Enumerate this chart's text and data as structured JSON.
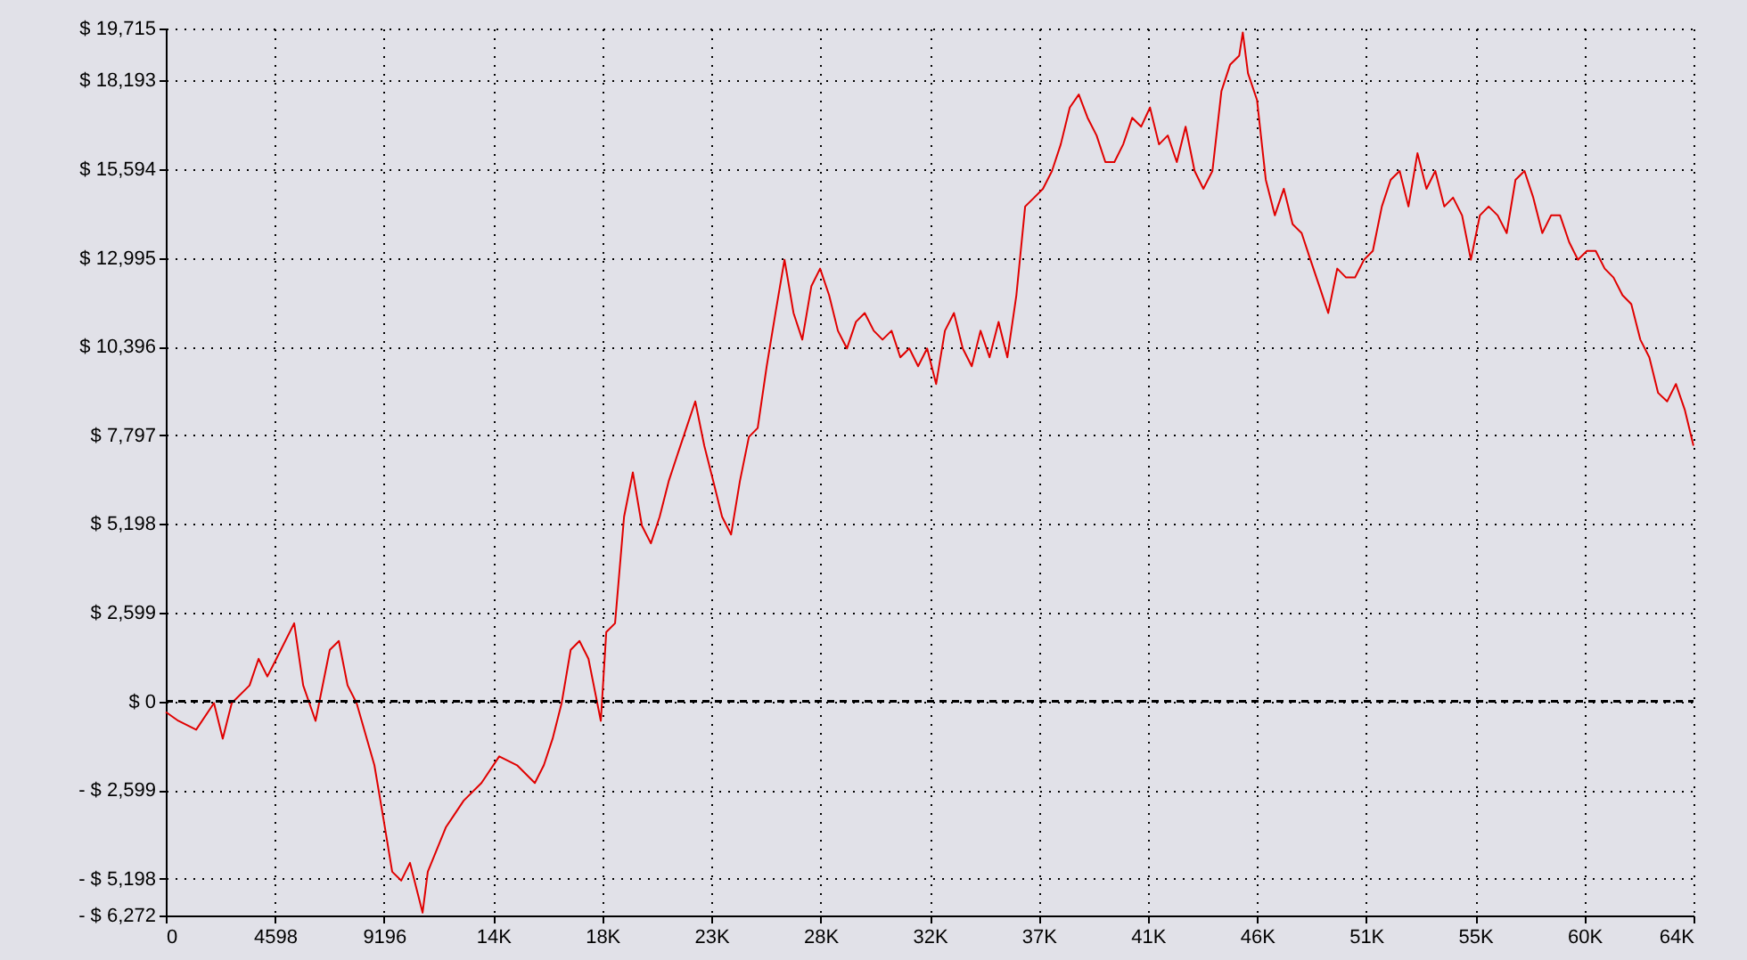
{
  "chart_data": {
    "type": "line",
    "xlim": [
      0,
      64372
    ],
    "xticks": [
      0,
      4598,
      9196,
      {
        "value": 13794,
        "label": "14K"
      },
      {
        "value": 18392,
        "label": "18K"
      },
      {
        "value": 22990,
        "label": "23K"
      },
      {
        "value": 27588,
        "label": "28K"
      },
      {
        "value": 32186,
        "label": "32K"
      },
      {
        "value": 36784,
        "label": "37K"
      },
      {
        "value": 41382,
        "label": "41K"
      },
      {
        "value": 45980,
        "label": "46K"
      },
      {
        "value": 50578,
        "label": "51K"
      },
      {
        "value": 55176,
        "label": "55K"
      },
      {
        "value": 59774,
        "label": "60K"
      },
      {
        "value": 64372,
        "label": "64K"
      }
    ],
    "ylim": [
      -6272,
      19715
    ],
    "yticks": [
      {
        "value": -6272,
        "label": "- $ 6,272"
      },
      {
        "value": -5198,
        "label": "- $ 5,198"
      },
      {
        "value": -2599,
        "label": "- $ 2,599"
      },
      {
        "value": 0,
        "label": "$ 0"
      },
      {
        "value": 2599,
        "label": "$ 2,599"
      },
      {
        "value": 5198,
        "label": "$ 5,198"
      },
      {
        "value": 7797,
        "label": "$ 7,797"
      },
      {
        "value": 10396,
        "label": "$ 10,396"
      },
      {
        "value": 12995,
        "label": "$ 12,995"
      },
      {
        "value": 15594,
        "label": "$ 15,594"
      },
      {
        "value": 18193,
        "label": "$ 18,193"
      },
      {
        "value": 19715,
        "label": "$ 19,715"
      }
    ],
    "grid": true,
    "line_style": "solid",
    "ref_lines": [
      {
        "axis": "y",
        "value": 0,
        "color": "#000000",
        "line_style": "dashed"
      }
    ],
    "series": [
      {
        "color": "#e00000",
        "x": [
          0,
          530,
          1280,
          2030,
          2400,
          2780,
          3530,
          3910,
          4280,
          4660,
          5410,
          5790,
          6310,
          6910,
          7290,
          7660,
          8040,
          8790,
          9170,
          9540,
          9920,
          10290,
          10820,
          11040,
          11800,
          12550,
          13300,
          14050,
          14800,
          15550,
          15930,
          16300,
          16680,
          17060,
          17430,
          17810,
          18330,
          18560,
          18930,
          19310,
          19680,
          20060,
          20440,
          20810,
          21190,
          21560,
          22310,
          22690,
          23070,
          23440,
          23820,
          24190,
          24570,
          24940,
          25320,
          25690,
          26070,
          26450,
          26820,
          27200,
          27570,
          27950,
          28320,
          28700,
          29080,
          29450,
          29830,
          30200,
          30580,
          30950,
          31330,
          31700,
          32080,
          32460,
          32830,
          33210,
          33580,
          33960,
          34330,
          34710,
          35090,
          35460,
          35840,
          36210,
          36590,
          36960,
          37340,
          37710,
          38090,
          38470,
          38840,
          39220,
          39590,
          39970,
          40340,
          40720,
          41100,
          41470,
          41850,
          42220,
          42600,
          42970,
          43350,
          43720,
          44100,
          44480,
          44850,
          45230,
          45380,
          45600,
          45980,
          46350,
          46730,
          47110,
          47480,
          47860,
          48230,
          48610,
          48980,
          49360,
          49730,
          50110,
          50490,
          50860,
          51240,
          51610,
          51990,
          52360,
          52740,
          53120,
          53490,
          53870,
          54240,
          54620,
          54990,
          55370,
          55740,
          56120,
          56500,
          56870,
          57250,
          57620,
          58000,
          58370,
          58750,
          59130,
          59500,
          59880,
          60250,
          60630,
          61000,
          61380,
          61750,
          62130,
          62510,
          62880,
          63260,
          63630,
          64010,
          64370
        ],
        "values": [
          -310,
          -570,
          -830,
          -50,
          -1090,
          -50,
          470,
          1250,
          730,
          1250,
          2290,
          470,
          -570,
          1510,
          1770,
          470,
          -50,
          -1870,
          -3430,
          -4990,
          -5250,
          -4730,
          -6190,
          -4990,
          -3690,
          -2910,
          -2390,
          -1610,
          -1870,
          -2390,
          -1870,
          -1090,
          -50,
          1510,
          1770,
          1250,
          -570,
          2030,
          2290,
          5410,
          6710,
          5150,
          4630,
          5410,
          6450,
          7230,
          8790,
          7490,
          6450,
          5410,
          4890,
          6450,
          7750,
          8010,
          9820,
          11380,
          12940,
          11380,
          10600,
          12160,
          12680,
          11900,
          10860,
          10340,
          11120,
          11380,
          10860,
          10600,
          10860,
          10080,
          10340,
          9820,
          10340,
          9300,
          10860,
          11380,
          10340,
          9820,
          10860,
          10080,
          11120,
          10080,
          11900,
          14500,
          14760,
          15020,
          15540,
          16320,
          17400,
          17780,
          17100,
          16580,
          15800,
          15800,
          16320,
          17100,
          16840,
          17400,
          16320,
          16580,
          15800,
          16840,
          15540,
          15020,
          15540,
          17880,
          18660,
          18920,
          19600,
          18400,
          17620,
          15280,
          14240,
          15020,
          13980,
          13720,
          12940,
          12160,
          11380,
          12680,
          12420,
          12420,
          12940,
          13200,
          14500,
          15280,
          15540,
          14500,
          16060,
          15020,
          15540,
          14500,
          14760,
          14240,
          12940,
          14240,
          14500,
          14240,
          13720,
          15280,
          15540,
          14760,
          13720,
          14240,
          14240,
          13460,
          12940,
          13200,
          13200,
          12680,
          12420,
          11900,
          11640,
          10600,
          10080,
          9040,
          8790,
          9300,
          8530,
          7490
        ]
      }
    ]
  }
}
